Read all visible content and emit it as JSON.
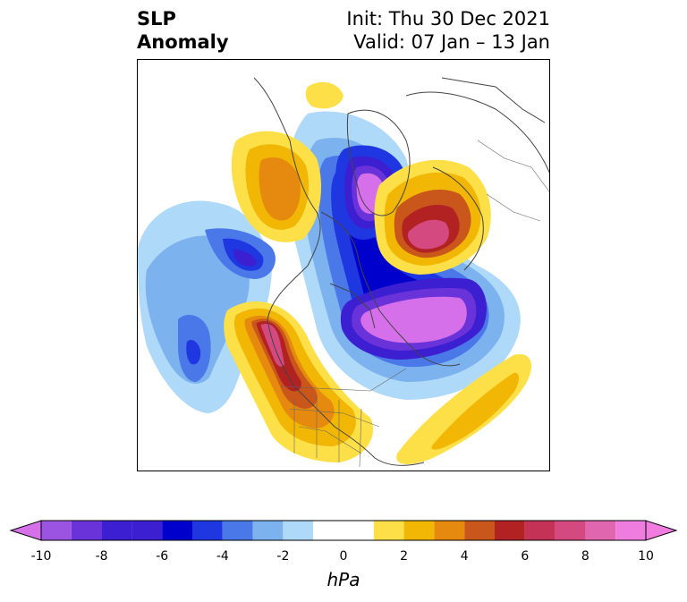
{
  "title": {
    "variable": "SLP",
    "kind": "Anomaly",
    "init": "Init: Thu 30 Dec 2021",
    "valid": "Valid: 07 Jan – 13 Jan"
  },
  "colorbar": {
    "units": "hPa",
    "ticks": [
      "-10",
      "-8",
      "-6",
      "-4",
      "-2",
      "0",
      "2",
      "4",
      "6",
      "8",
      "10"
    ],
    "levels": [
      -10,
      -9,
      -8,
      -7,
      -6,
      -5,
      -4,
      -3,
      -2,
      -1,
      1,
      2,
      3,
      4,
      5,
      6,
      7,
      8,
      9,
      10
    ],
    "colors": [
      "#9b54e1",
      "#6a33d9",
      "#3b1fd1",
      "#0000cc",
      "#1f37e0",
      "#4a78e8",
      "#7cb2ee",
      "#aed9f8",
      "#ffffff",
      "#ffffff",
      "#fde047",
      "#f2b705",
      "#e68a0f",
      "#c9561a",
      "#b22222",
      "#c43355",
      "#d44a80",
      "#e066b0",
      "#ee7ddf"
    ],
    "under_color": "#d670ea",
    "over_color": "#f07ce0"
  },
  "map": {
    "projection": "polar-stereographic",
    "region": "North America / Arctic"
  }
}
